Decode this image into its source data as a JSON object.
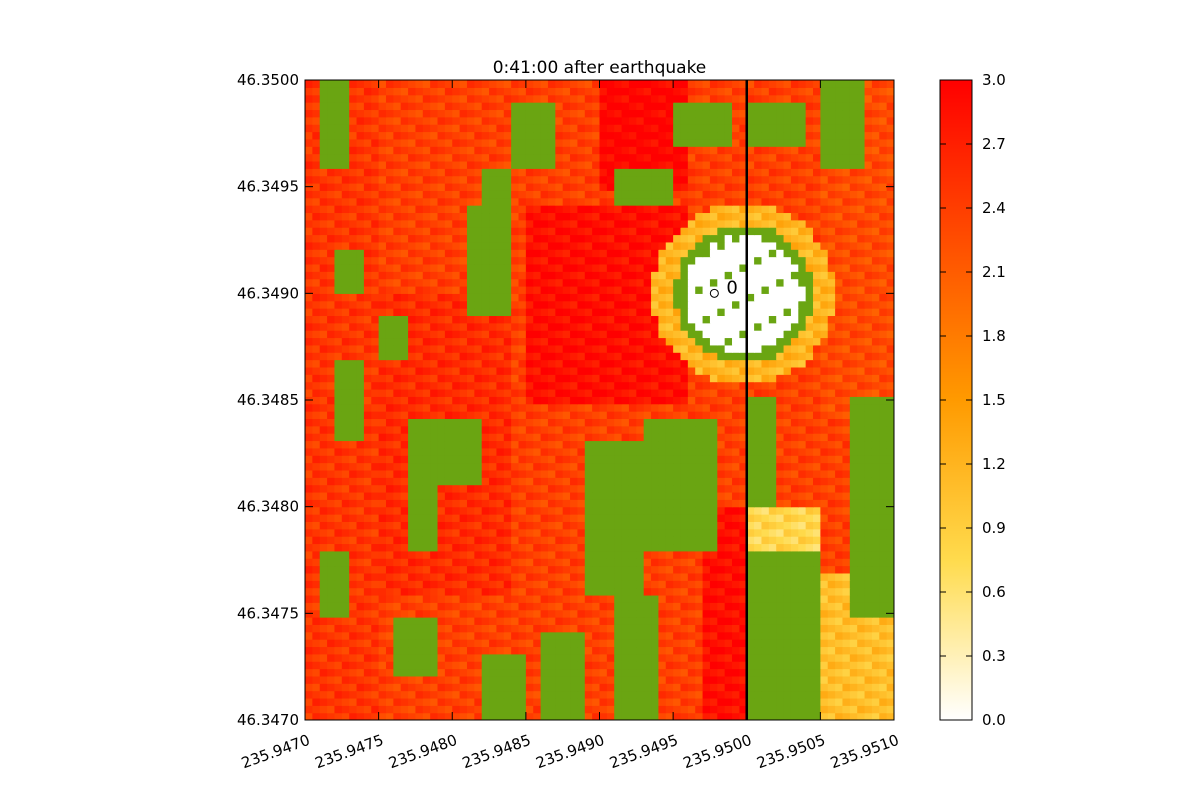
{
  "chart_data": {
    "type": "heatmap",
    "title": "0:41:00 after earthquake",
    "xlabel": "",
    "ylabel": "",
    "xlim": [
      235.947,
      235.951
    ],
    "ylim": [
      46.347,
      46.35
    ],
    "x_ticks": [
      235.947,
      235.9475,
      235.948,
      235.9485,
      235.949,
      235.9495,
      235.95,
      235.9505,
      235.951
    ],
    "x_tick_labels": [
      "235.9470",
      "235.9475",
      "235.9480",
      "235.9485",
      "235.9490",
      "235.9495",
      "235.9500",
      "235.9505",
      "235.9510"
    ],
    "y_ticks": [
      46.347,
      46.3475,
      46.348,
      46.3485,
      46.349,
      46.3495,
      46.35
    ],
    "y_tick_labels": [
      "46.3470",
      "46.3475",
      "46.3480",
      "46.3485",
      "46.3490",
      "46.3495",
      "46.3500"
    ],
    "colorbar": {
      "min": 0.0,
      "max": 3.0,
      "ticks": [
        0.0,
        0.3,
        0.6,
        0.9,
        1.2,
        1.5,
        1.8,
        2.1,
        2.4,
        2.7,
        3.0
      ],
      "tick_labels": [
        "0.0",
        "0.3",
        "0.6",
        "0.9",
        "1.2",
        "1.5",
        "1.8",
        "2.1",
        "2.4",
        "2.7",
        "3.0"
      ],
      "colors": [
        "#ffffff",
        "#ffdb4d",
        "#ff9a00",
        "#ff4d00",
        "#ff0000"
      ]
    },
    "land_color": "#6aa512",
    "vertical_line": {
      "x": 235.95,
      "color": "#000000"
    },
    "marker": {
      "x": 235.94978,
      "y": 46.349,
      "label": "0"
    },
    "wet_regions": [
      {
        "kind": "rect",
        "x0": 235.947,
        "x1": 235.9475,
        "y0": 46.347,
        "y1": 46.35,
        "value": 2.5
      },
      {
        "kind": "rect",
        "x0": 235.9475,
        "x1": 235.9484,
        "y0": 46.3476,
        "y1": 46.349,
        "value": 2.6
      },
      {
        "kind": "rect",
        "x0": 235.9485,
        "x1": 235.9496,
        "y0": 46.3485,
        "y1": 46.3494,
        "value": 2.9
      },
      {
        "kind": "rect",
        "x0": 235.949,
        "x1": 235.9496,
        "y0": 46.3495,
        "y1": 46.35,
        "value": 3.0
      },
      {
        "kind": "rect",
        "x0": 235.9497,
        "x1": 235.95,
        "y0": 46.347,
        "y1": 46.348,
        "value": 2.9
      },
      {
        "kind": "rect",
        "x0": 235.95,
        "x1": 235.9505,
        "y0": 46.347,
        "y1": 46.348,
        "value": 0.8
      },
      {
        "kind": "rect",
        "x0": 235.9505,
        "x1": 235.951,
        "y0": 46.3484,
        "y1": 46.35,
        "value": 2.3
      },
      {
        "kind": "rect",
        "x0": 235.9505,
        "x1": 235.951,
        "y0": 46.347,
        "y1": 46.3477,
        "value": 1.1
      },
      {
        "kind": "ring",
        "cx": 235.94998,
        "cy": 46.349,
        "r": 0.00042,
        "value": 2.8
      },
      {
        "kind": "ring",
        "cx": 235.94998,
        "cy": 46.349,
        "r": 0.00062,
        "value": 1.2
      }
    ],
    "dry_regions": [
      {
        "kind": "circle",
        "cx": 235.94998,
        "cy": 46.349,
        "r": 0.00047
      },
      {
        "kind": "rect",
        "x0": 235.9477,
        "x1": 235.9482,
        "y0": 46.3481,
        "y1": 46.3484
      },
      {
        "kind": "rect",
        "x0": 235.9477,
        "x1": 235.9479,
        "y0": 46.3478,
        "y1": 46.3484
      },
      {
        "kind": "rect",
        "x0": 235.9481,
        "x1": 235.9484,
        "y0": 46.3489,
        "y1": 46.3494
      },
      {
        "kind": "rect",
        "x0": 235.9482,
        "x1": 235.9484,
        "y0": 46.3494,
        "y1": 46.3496
      },
      {
        "kind": "rect",
        "x0": 235.9484,
        "x1": 235.9487,
        "y0": 46.3496,
        "y1": 46.3499
      },
      {
        "kind": "rect",
        "x0": 235.9471,
        "x1": 235.9473,
        "y0": 46.3496,
        "y1": 46.35
      },
      {
        "kind": "rect",
        "x0": 235.9491,
        "x1": 235.9495,
        "y0": 46.3494,
        "y1": 46.3496
      },
      {
        "kind": "rect",
        "x0": 235.9495,
        "x1": 235.9499,
        "y0": 46.3497,
        "y1": 46.3499
      },
      {
        "kind": "rect",
        "x0": 235.95,
        "x1": 235.9504,
        "y0": 46.3497,
        "y1": 46.3499
      },
      {
        "kind": "rect",
        "x0": 235.9505,
        "x1": 235.9508,
        "y0": 46.3496,
        "y1": 46.35
      },
      {
        "kind": "rect",
        "x0": 235.9489,
        "x1": 235.9493,
        "y0": 46.3476,
        "y1": 46.3483
      },
      {
        "kind": "rect",
        "x0": 235.9493,
        "x1": 235.9498,
        "y0": 46.3478,
        "y1": 46.3484
      },
      {
        "kind": "rect",
        "x0": 235.9491,
        "x1": 235.9494,
        "y0": 46.347,
        "y1": 46.3476
      },
      {
        "kind": "rect",
        "x0": 235.95,
        "x1": 235.9502,
        "y0": 46.348,
        "y1": 46.3485
      },
      {
        "kind": "rect",
        "x0": 235.95,
        "x1": 235.9505,
        "y0": 46.347,
        "y1": 46.3478
      },
      {
        "kind": "rect",
        "x0": 235.9507,
        "x1": 235.951,
        "y0": 46.3475,
        "y1": 46.3485
      },
      {
        "kind": "rect",
        "x0": 235.9486,
        "x1": 235.9489,
        "y0": 46.347,
        "y1": 46.3474
      },
      {
        "kind": "rect",
        "x0": 235.9476,
        "x1": 235.9479,
        "y0": 46.3472,
        "y1": 46.3475
      },
      {
        "kind": "rect",
        "x0": 235.9471,
        "x1": 235.9473,
        "y0": 46.3475,
        "y1": 46.3478
      },
      {
        "kind": "rect",
        "x0": 235.9472,
        "x1": 235.9474,
        "y0": 46.3483,
        "y1": 46.3487
      },
      {
        "kind": "rect",
        "x0": 235.9472,
        "x1": 235.9474,
        "y0": 46.349,
        "y1": 46.3492
      },
      {
        "kind": "rect",
        "x0": 235.9482,
        "x1": 235.9485,
        "y0": 46.347,
        "y1": 46.3473
      },
      {
        "kind": "rect",
        "x0": 235.9475,
        "x1": 235.9477,
        "y0": 46.3487,
        "y1": 46.3489
      }
    ],
    "wet_on_dry": [
      {
        "kind": "rect",
        "x0": 235.9479,
        "x1": 235.9485,
        "y0": 46.3479,
        "y1": 46.3481,
        "value": 2.7
      }
    ]
  }
}
